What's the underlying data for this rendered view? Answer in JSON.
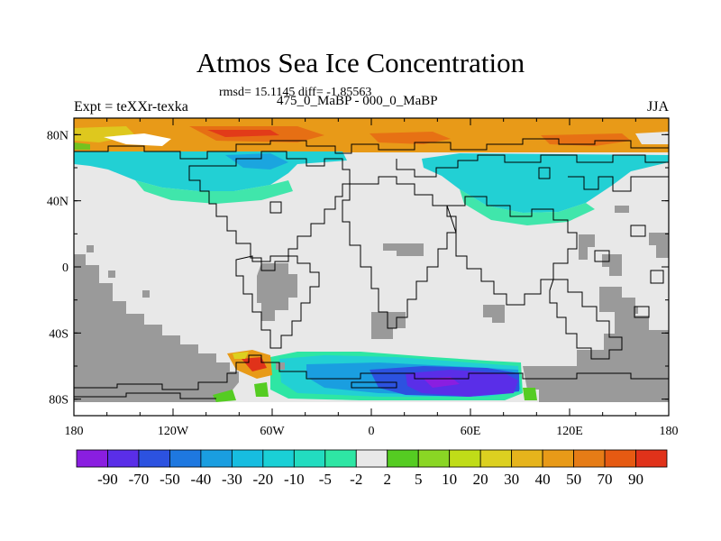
{
  "title": "Atmos Sea Ice Concentration",
  "stats_text": "rmsd= 15.1145 diff= -1.85563",
  "period_text": "475_0_MaBP - 000_0_MaBP",
  "expt_text": "Expt = teXXr-texka",
  "season_text": "JJA",
  "axes": {
    "x_ticks": [
      "180",
      "120W",
      "60W",
      "0",
      "60E",
      "120E",
      "180"
    ],
    "y_ticks": [
      "80N",
      "40N",
      "0",
      "40S",
      "80S"
    ]
  },
  "colorbar": {
    "labels": [
      "-90",
      "-70",
      "-50",
      "-40",
      "-30",
      "-20",
      "-10",
      "-5",
      "-2",
      "2",
      "5",
      "10",
      "20",
      "30",
      "40",
      "50",
      "70",
      "90"
    ],
    "colors": [
      "#8a1ee0",
      "#5a2ee8",
      "#2c52e0",
      "#1e78e0",
      "#1a9ee0",
      "#17bde0",
      "#1ad0d6",
      "#22dcc0",
      "#2ee6a4",
      "#e8e8e8",
      "#55cc22",
      "#8ad624",
      "#c0dc18",
      "#dcd020",
      "#e6b41c",
      "#e89a18",
      "#e67c16",
      "#e65a12",
      "#e0321a"
    ]
  },
  "palette": {
    "land": "#9a9a9a",
    "neutral": "#e8e8e8",
    "cyan": "#22d0d4",
    "cyan_light": "#5ae4d0",
    "teal": "#2ee6a4",
    "blue": "#1a9ee0",
    "blue_dark": "#2c52e0",
    "violet": "#5a2ee8",
    "purple": "#8a1ee0",
    "orange": "#e89a18",
    "orange_dark": "#e66a14",
    "red": "#e0321a",
    "yellow": "#dcd020",
    "green": "#55cc22",
    "coast": "#000000"
  }
}
